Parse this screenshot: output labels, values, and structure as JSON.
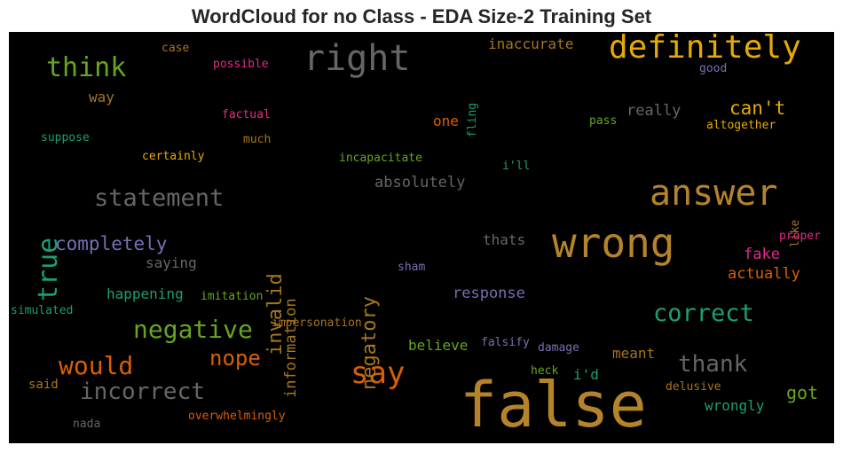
{
  "title": "WordCloud for no Class - EDA Size-2 Training Set",
  "words": [
    {
      "id": "false",
      "text": "false",
      "color": "#b5832a"
    },
    {
      "id": "wrong",
      "text": "wrong",
      "color": "#b5832a"
    },
    {
      "id": "answer",
      "text": "answer",
      "color": "#b5832a"
    },
    {
      "id": "right",
      "text": "right",
      "color": "#666666"
    },
    {
      "id": "definitely",
      "text": "definitely",
      "color": "#e6ab02"
    },
    {
      "id": "say",
      "text": "say",
      "color": "#d95f02"
    },
    {
      "id": "true",
      "text": "true",
      "color": "#1b9e77"
    },
    {
      "id": "think",
      "text": "think",
      "color": "#66a61e"
    },
    {
      "id": "statement",
      "text": "statement",
      "color": "#666666"
    },
    {
      "id": "negative",
      "text": "negative",
      "color": "#66a61e"
    },
    {
      "id": "would",
      "text": "would",
      "color": "#d95f02"
    },
    {
      "id": "incorrect",
      "text": "incorrect",
      "color": "#666666"
    },
    {
      "id": "correct",
      "text": "correct",
      "color": "#1b9e77"
    },
    {
      "id": "thank",
      "text": "thank",
      "color": "#666666"
    },
    {
      "id": "nope",
      "text": "nope",
      "color": "#d95f02"
    },
    {
      "id": "invalid",
      "text": "invalid",
      "color": "#a6761d"
    },
    {
      "id": "negatory",
      "text": "negatory",
      "color": "#a6761d"
    },
    {
      "id": "completely",
      "text": "completely",
      "color": "#7570b3"
    },
    {
      "id": "cant",
      "text": "can't",
      "color": "#e6ab02"
    },
    {
      "id": "information",
      "text": "information",
      "color": "#a6761d"
    },
    {
      "id": "absolutely",
      "text": "absolutely",
      "color": "#666666"
    },
    {
      "id": "response",
      "text": "response",
      "color": "#7570b3"
    },
    {
      "id": "actually",
      "text": "actually",
      "color": "#d95f02"
    },
    {
      "id": "fake",
      "text": "fake",
      "color": "#e7298a"
    },
    {
      "id": "happening",
      "text": "happening",
      "color": "#1b9e77"
    },
    {
      "id": "really",
      "text": "really",
      "color": "#666666"
    },
    {
      "id": "inaccurate",
      "text": "inaccurate",
      "color": "#a6761d"
    },
    {
      "id": "thats",
      "text": "thats",
      "color": "#666666"
    },
    {
      "id": "saying",
      "text": "saying",
      "color": "#666666"
    },
    {
      "id": "believe",
      "text": "believe",
      "color": "#66a61e"
    },
    {
      "id": "meant",
      "text": "meant",
      "color": "#a6761d"
    },
    {
      "id": "wrongly",
      "text": "wrongly",
      "color": "#1b9e77"
    },
    {
      "id": "got",
      "text": "got",
      "color": "#66a61e"
    },
    {
      "id": "one",
      "text": "one",
      "color": "#d95f02"
    },
    {
      "id": "way",
      "text": "way",
      "color": "#a6761d"
    },
    {
      "id": "id",
      "text": "i'd",
      "color": "#1b9e77"
    },
    {
      "id": "said",
      "text": "said",
      "color": "#a6761d"
    },
    {
      "id": "certainly",
      "text": "certainly",
      "color": "#e6ab02"
    },
    {
      "id": "incapacitate",
      "text": "incapacitate",
      "color": "#66a61e"
    },
    {
      "id": "much",
      "text": "much",
      "color": "#a6761d"
    },
    {
      "id": "factual",
      "text": "factual",
      "color": "#e7298a"
    },
    {
      "id": "possible",
      "text": "possible",
      "color": "#e7298a"
    },
    {
      "id": "case",
      "text": "case",
      "color": "#a6761d"
    },
    {
      "id": "suppose",
      "text": "suppose",
      "color": "#1b9e77"
    },
    {
      "id": "fling",
      "text": "fling",
      "color": "#1b9e77"
    },
    {
      "id": "good",
      "text": "good",
      "color": "#7570b3"
    },
    {
      "id": "pass",
      "text": "pass",
      "color": "#66a61e"
    },
    {
      "id": "altogether",
      "text": "altogether",
      "color": "#e6ab02"
    },
    {
      "id": "ill",
      "text": "i'll",
      "color": "#1b9e77"
    },
    {
      "id": "like",
      "text": "like",
      "color": "#a6761d"
    },
    {
      "id": "proper",
      "text": "proper",
      "color": "#e7298a"
    },
    {
      "id": "sham",
      "text": "sham",
      "color": "#7570b3"
    },
    {
      "id": "imitation",
      "text": "imitation",
      "color": "#66a61e"
    },
    {
      "id": "simulated",
      "text": "simulated",
      "color": "#1b9e77"
    },
    {
      "id": "impersonation",
      "text": "impersonation",
      "color": "#a6761d"
    },
    {
      "id": "falsify",
      "text": "falsify",
      "color": "#7570b3"
    },
    {
      "id": "damage",
      "text": "damage",
      "color": "#7570b3"
    },
    {
      "id": "heck",
      "text": "heck",
      "color": "#66a61e"
    },
    {
      "id": "delusive",
      "text": "delusive",
      "color": "#a6761d"
    },
    {
      "id": "overwhelmingly",
      "text": "overwhelmingly",
      "color": "#d95f02"
    },
    {
      "id": "nada",
      "text": "nada",
      "color": "#666666"
    }
  ]
}
